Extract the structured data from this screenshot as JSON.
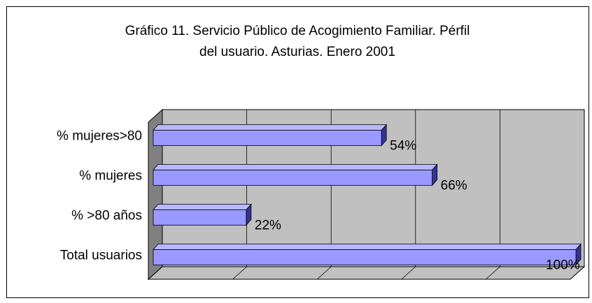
{
  "chart_data": {
    "type": "bar",
    "orientation": "horizontal",
    "title": "Gráfico 11. Servicio Público de Acogimiento Familiar. Pérfil del usuario. Asturias. Enero 2001",
    "categories": [
      "% mujeres>80",
      "% mujeres",
      "% >80 años",
      "Total usuarios"
    ],
    "values": [
      54,
      66,
      22,
      100
    ],
    "value_labels": [
      "54%",
      "66%",
      "22%",
      "100%"
    ],
    "color": "#9999ff",
    "xlim": [
      0,
      100
    ],
    "xticks": [
      0,
      20,
      40,
      60,
      80,
      100
    ],
    "grid": true
  }
}
